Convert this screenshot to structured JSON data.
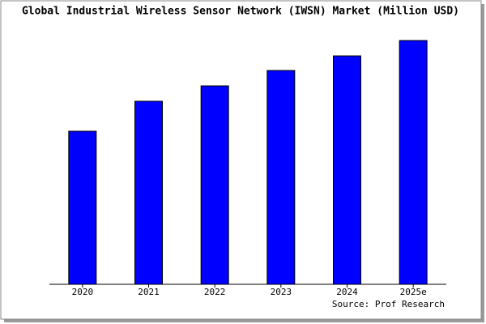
{
  "chart_data": {
    "type": "bar",
    "title": "Global Industrial Wireless Sensor Network (IWSN) Market (Million USD)",
    "categories": [
      "2020",
      "2021",
      "2022",
      "2023",
      "2024",
      "2025e"
    ],
    "values": [
      189,
      226,
      245,
      264,
      282,
      301
    ],
    "color": "#0000ff",
    "source": "Source: Prof Research"
  }
}
